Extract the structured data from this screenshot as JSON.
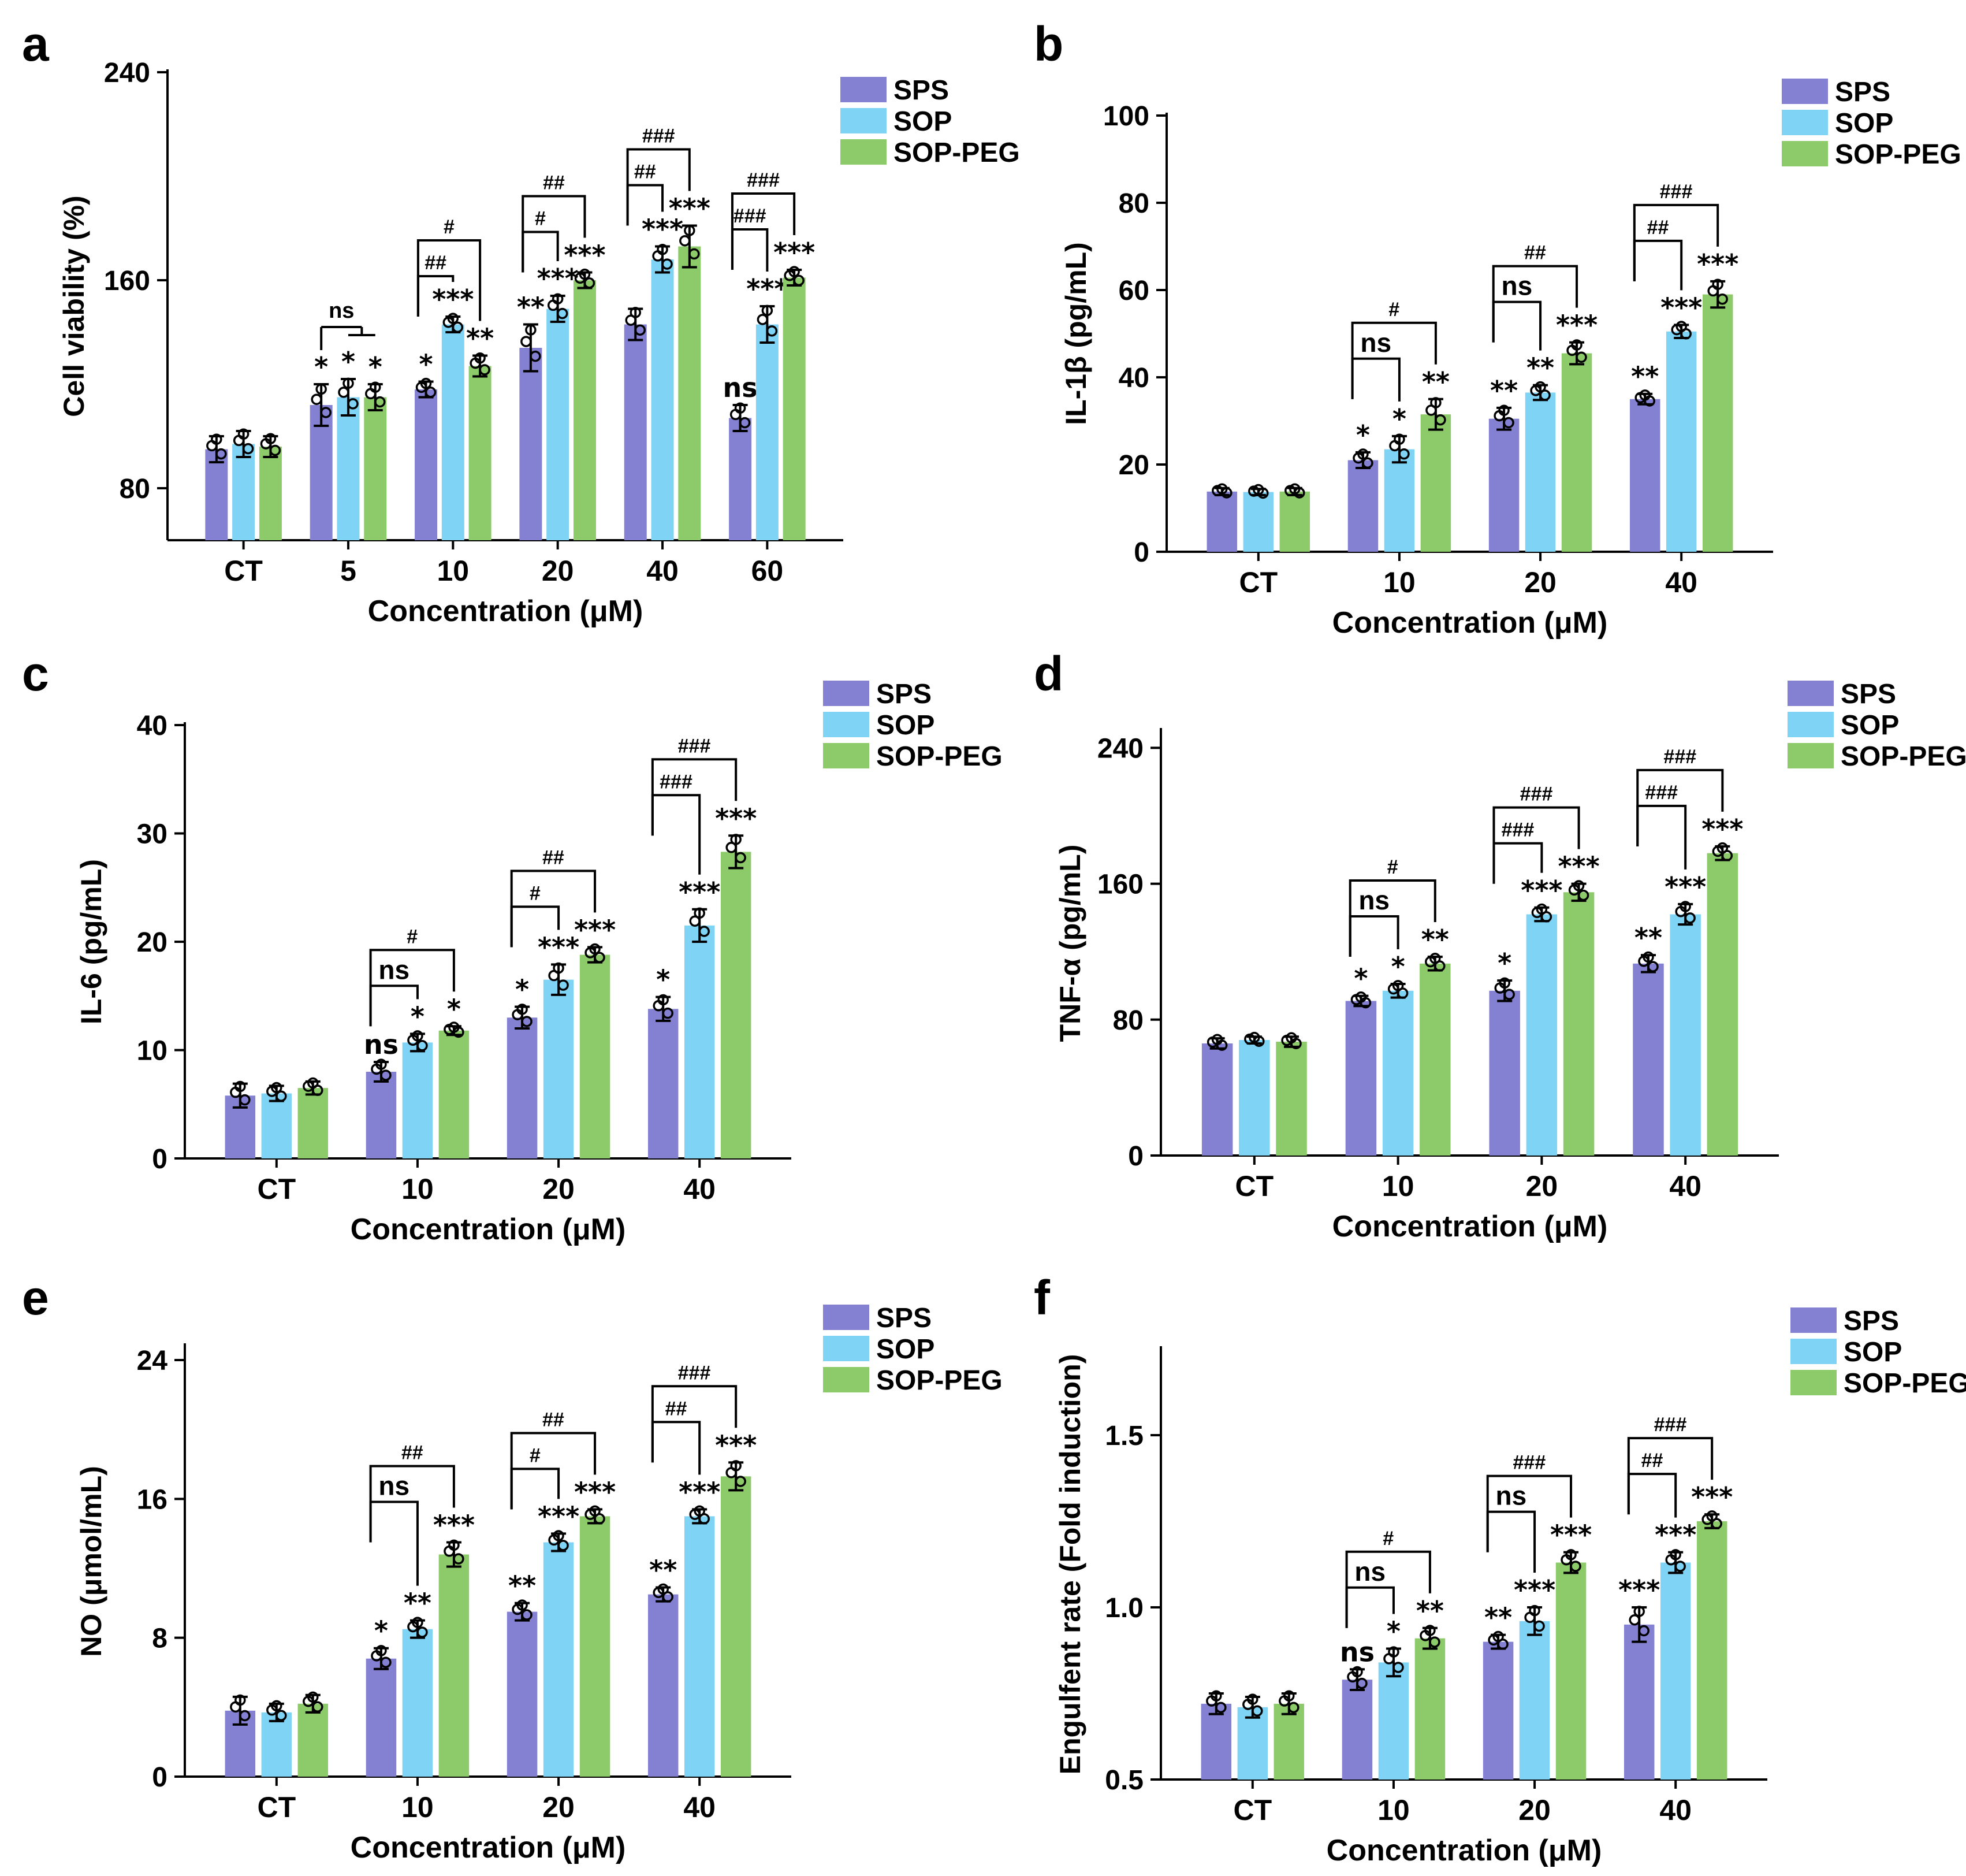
{
  "legend": [
    "SPS",
    "SOP",
    "SOP-PEG"
  ],
  "colors": {
    "SPS": "#8480d2",
    "SOP": "#7fd3f5",
    "SOP-PEG": "#8cca6a"
  },
  "chart_data": [
    {
      "panel": "a",
      "type": "bar",
      "ylabel": "Cell viability (%)",
      "xlabel": "Concentration (μM)",
      "categories": [
        "CT",
        "5",
        "10",
        "20",
        "40",
        "60"
      ],
      "ylim": [
        60,
        240
      ],
      "yticks": [
        80,
        160,
        240
      ],
      "series": [
        {
          "name": "SPS",
          "values": [
            95,
            112,
            118,
            134,
            143,
            107
          ],
          "err": [
            5,
            8,
            3,
            9,
            6,
            5
          ],
          "sig": [
            "",
            "*",
            "*",
            "**",
            "",
            "ns"
          ]
        },
        {
          "name": "SOP",
          "values": [
            97,
            115,
            143,
            149,
            168,
            143
          ],
          "err": [
            5,
            7,
            3,
            5,
            5,
            7
          ],
          "sig": [
            "",
            "*",
            "***",
            "***",
            "***",
            "***"
          ]
        },
        {
          "name": "SOP-PEG",
          "values": [
            96,
            115,
            127,
            160,
            173,
            161
          ],
          "err": [
            4,
            5,
            4,
            3,
            8,
            3
          ],
          "sig": [
            "",
            "*",
            "**",
            "***",
            "***",
            "***"
          ]
        }
      ],
      "brackets": [
        {
          "cat": 1,
          "type": "group",
          "label": "ns"
        },
        {
          "cat": 2,
          "from": 0,
          "to": 1,
          "label": "##"
        },
        {
          "cat": 2,
          "from": 0,
          "to": 2,
          "label": "#"
        },
        {
          "cat": 3,
          "from": 0,
          "to": 1,
          "label": "#"
        },
        {
          "cat": 3,
          "from": 0,
          "to": 2,
          "label": "##"
        },
        {
          "cat": 4,
          "from": 0,
          "to": 1,
          "label": "##"
        },
        {
          "cat": 4,
          "from": 0,
          "to": 2,
          "label": "###"
        },
        {
          "cat": 5,
          "from": 0,
          "to": 1,
          "label": "###"
        },
        {
          "cat": 5,
          "from": 0,
          "to": 2,
          "label": "###"
        }
      ]
    },
    {
      "panel": "b",
      "type": "bar",
      "ylabel": "IL-1β (pg/mL)",
      "xlabel": "Concentration (μM)",
      "categories": [
        "CT",
        "10",
        "20",
        "40"
      ],
      "ylim": [
        0,
        100
      ],
      "yticks": [
        0,
        20,
        40,
        60,
        80,
        100
      ],
      "series": [
        {
          "name": "SPS",
          "values": [
            13.8,
            21,
            30.5,
            35
          ],
          "err": [
            0.8,
            1.8,
            2.5,
            1.2
          ],
          "sig": [
            "",
            "*",
            "**",
            "**"
          ]
        },
        {
          "name": "SOP",
          "values": [
            13.7,
            23.5,
            36.5,
            50.5
          ],
          "err": [
            0.7,
            3,
            1.7,
            1.5
          ],
          "sig": [
            "",
            "*",
            "**",
            "***"
          ]
        },
        {
          "name": "SOP-PEG",
          "values": [
            13.8,
            31.5,
            45.5,
            59
          ],
          "err": [
            0.8,
            3.5,
            2.5,
            3
          ],
          "sig": [
            "",
            "**",
            "***",
            "***"
          ]
        }
      ],
      "brackets": [
        {
          "cat": 1,
          "from": 0,
          "to": 1,
          "label": "ns"
        },
        {
          "cat": 1,
          "from": 0,
          "to": 2,
          "label": "#"
        },
        {
          "cat": 2,
          "from": 0,
          "to": 1,
          "label": "ns"
        },
        {
          "cat": 2,
          "from": 0,
          "to": 2,
          "label": "##"
        },
        {
          "cat": 3,
          "from": 0,
          "to": 1,
          "label": "##"
        },
        {
          "cat": 3,
          "from": 0,
          "to": 2,
          "label": "###"
        }
      ]
    },
    {
      "panel": "c",
      "type": "bar",
      "ylabel": "IL-6 (pg/mL)",
      "xlabel": "Concentration (μM)",
      "categories": [
        "CT",
        "10",
        "20",
        "40"
      ],
      "ylim": [
        0,
        40
      ],
      "yticks": [
        0,
        10,
        20,
        30,
        40
      ],
      "series": [
        {
          "name": "SPS",
          "values": [
            5.8,
            8,
            13,
            13.8
          ],
          "err": [
            1.1,
            0.9,
            1,
            1.1
          ],
          "sig": [
            "",
            "ns",
            "*",
            "*"
          ]
        },
        {
          "name": "SOP",
          "values": [
            6,
            10.7,
            16.5,
            21.5
          ],
          "err": [
            0.7,
            0.8,
            1.4,
            1.5
          ],
          "sig": [
            "",
            "*",
            "***",
            "***"
          ]
        },
        {
          "name": "SOP-PEG",
          "values": [
            6.5,
            11.8,
            18.8,
            28.3
          ],
          "err": [
            0.6,
            0.4,
            0.7,
            1.5
          ],
          "sig": [
            "",
            "*",
            "***",
            "***"
          ]
        }
      ],
      "brackets": [
        {
          "cat": 1,
          "from": 0,
          "to": 1,
          "label": "ns"
        },
        {
          "cat": 1,
          "from": 0,
          "to": 2,
          "label": "#"
        },
        {
          "cat": 2,
          "from": 0,
          "to": 1,
          "label": "#"
        },
        {
          "cat": 2,
          "from": 0,
          "to": 2,
          "label": "##"
        },
        {
          "cat": 3,
          "from": 0,
          "to": 1,
          "label": "###"
        },
        {
          "cat": 3,
          "from": 0,
          "to": 2,
          "label": "###"
        }
      ]
    },
    {
      "panel": "d",
      "type": "bar",
      "ylabel": "TNF-α (pg/mL)",
      "xlabel": "Concentration (μM)",
      "categories": [
        "CT",
        "10",
        "20",
        "40"
      ],
      "ylim": [
        0,
        250
      ],
      "yticks": [
        0,
        80,
        160,
        240
      ],
      "series": [
        {
          "name": "SPS",
          "values": [
            66,
            91,
            97,
            113
          ],
          "err": [
            3,
            3,
            6,
            5
          ],
          "sig": [
            "",
            "*",
            "*",
            "**"
          ]
        },
        {
          "name": "SOP",
          "values": [
            68,
            97,
            142,
            142
          ],
          "err": [
            2,
            4,
            4,
            6
          ],
          "sig": [
            "",
            "*",
            "***",
            "***"
          ]
        },
        {
          "name": "SOP-PEG",
          "values": [
            67,
            113,
            155,
            178
          ],
          "err": [
            3,
            4,
            5,
            4
          ],
          "sig": [
            "",
            "**",
            "***",
            "***"
          ]
        }
      ],
      "brackets": [
        {
          "cat": 1,
          "from": 0,
          "to": 1,
          "label": "ns"
        },
        {
          "cat": 1,
          "from": 0,
          "to": 2,
          "label": "#"
        },
        {
          "cat": 2,
          "from": 0,
          "to": 1,
          "label": "###"
        },
        {
          "cat": 2,
          "from": 0,
          "to": 2,
          "label": "###"
        },
        {
          "cat": 3,
          "from": 0,
          "to": 1,
          "label": "###"
        },
        {
          "cat": 3,
          "from": 0,
          "to": 2,
          "label": "###"
        }
      ]
    },
    {
      "panel": "e",
      "type": "bar",
      "ylabel": "NO (μmol/mL)",
      "xlabel": "Concentration (μM)",
      "categories": [
        "CT",
        "10",
        "20",
        "40"
      ],
      "ylim": [
        0,
        24.8
      ],
      "yticks": [
        0,
        8,
        16,
        24
      ],
      "series": [
        {
          "name": "SPS",
          "values": [
            3.8,
            6.8,
            9.5,
            10.5
          ],
          "err": [
            0.8,
            0.6,
            0.5,
            0.4
          ],
          "sig": [
            "",
            "*",
            "**",
            "**"
          ]
        },
        {
          "name": "SOP",
          "values": [
            3.7,
            8.5,
            13.5,
            15
          ],
          "err": [
            0.5,
            0.5,
            0.5,
            0.4
          ],
          "sig": [
            "",
            "**",
            "***",
            "***"
          ]
        },
        {
          "name": "SOP-PEG",
          "values": [
            4.2,
            12.8,
            15,
            17.3
          ],
          "err": [
            0.5,
            0.7,
            0.4,
            0.8
          ],
          "sig": [
            "",
            "***",
            "***",
            "***"
          ]
        }
      ],
      "brackets": [
        {
          "cat": 1,
          "from": 0,
          "to": 1,
          "label": "ns"
        },
        {
          "cat": 1,
          "from": 0,
          "to": 2,
          "label": "##"
        },
        {
          "cat": 2,
          "from": 0,
          "to": 1,
          "label": "#"
        },
        {
          "cat": 2,
          "from": 0,
          "to": 2,
          "label": "##"
        },
        {
          "cat": 3,
          "from": 0,
          "to": 1,
          "label": "##"
        },
        {
          "cat": 3,
          "from": 0,
          "to": 2,
          "label": "###"
        }
      ]
    },
    {
      "panel": "f",
      "type": "bar",
      "ylabel": "Engulfent rate (Fold induction)",
      "xlabel": "Concentration (μM)",
      "categories": [
        "CT",
        "10",
        "20",
        "40"
      ],
      "ylim": [
        0.5,
        1.75
      ],
      "yticks": [
        0.5,
        1.0,
        1.5
      ],
      "ytick_labels": [
        "0.5",
        "1.0",
        "1.5"
      ],
      "series": [
        {
          "name": "SPS",
          "values": [
            0.72,
            0.79,
            0.9,
            0.95
          ],
          "err": [
            0.03,
            0.03,
            0.02,
            0.05
          ],
          "sig": [
            "",
            "ns",
            "**",
            "***"
          ]
        },
        {
          "name": "SOP",
          "values": [
            0.71,
            0.84,
            0.96,
            1.13
          ],
          "err": [
            0.03,
            0.04,
            0.04,
            0.03
          ],
          "sig": [
            "",
            "*",
            "***",
            "***"
          ]
        },
        {
          "name": "SOP-PEG",
          "values": [
            0.72,
            0.91,
            1.13,
            1.25
          ],
          "err": [
            0.03,
            0.03,
            0.03,
            0.02
          ],
          "sig": [
            "",
            "**",
            "***",
            "***"
          ]
        }
      ],
      "brackets": [
        {
          "cat": 1,
          "from": 0,
          "to": 1,
          "label": "ns"
        },
        {
          "cat": 1,
          "from": 0,
          "to": 2,
          "label": "#"
        },
        {
          "cat": 2,
          "from": 0,
          "to": 1,
          "label": "ns"
        },
        {
          "cat": 2,
          "from": 0,
          "to": 2,
          "label": "###"
        },
        {
          "cat": 3,
          "from": 0,
          "to": 1,
          "label": "##"
        },
        {
          "cat": 3,
          "from": 0,
          "to": 2,
          "label": "###"
        }
      ]
    }
  ]
}
